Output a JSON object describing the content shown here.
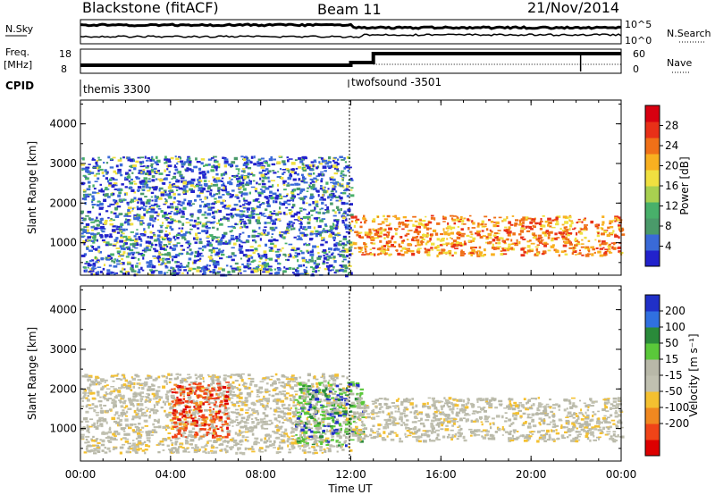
{
  "header": {
    "station": "Blackstone (fitACF)",
    "beam": "Beam 11",
    "date": "21/Nov/2014"
  },
  "strips": {
    "nsky_label": "N.Sky",
    "nsky_ticks": [
      "10^5",
      "10^0"
    ],
    "nsearch_label": "N.Search",
    "freq_label_line1": "Freq.",
    "freq_label_line2": "[MHz]",
    "freq_ticks": [
      "18",
      "8"
    ],
    "nave_label": "Nave",
    "nave_ticks": [
      "60",
      "0"
    ],
    "cpid_label": "CPID",
    "cpid_segments": [
      {
        "name": "themis 3300",
        "start_hour": 0
      },
      {
        "name": "twofsound -3501",
        "start_hour": 12
      }
    ]
  },
  "panels": {
    "power": {
      "ylabel": "Slant Range [km]",
      "cb_label": "Power [dB]"
    },
    "velocity": {
      "ylabel": "Slant Range [km]",
      "cb_label": "Velocity [m s⁻¹]"
    }
  },
  "xlabel": "Time UT",
  "colors": {
    "power_scale": [
      "#2222cc",
      "#3a6ad8",
      "#4a9a6a",
      "#48b06a",
      "#a8d050",
      "#f0e040",
      "#f8b020",
      "#f07018",
      "#e83018",
      "#d80010"
    ],
    "velocity_scale": [
      "#2030c8",
      "#3070e0",
      "#2a8a3a",
      "#5ac83a",
      "#b8b8a8",
      "#c0c0b0",
      "#f4c030",
      "#f08820",
      "#f04418",
      "#dd0000"
    ]
  },
  "chart_data": [
    {
      "type": "heatmap",
      "title": "Power",
      "x_axis": {
        "label": "Time UT",
        "range_hours": [
          0,
          24
        ],
        "ticks": [
          "00:00",
          "04:00",
          "08:00",
          "12:00",
          "16:00",
          "20:00",
          "00:00"
        ]
      },
      "y_axis": {
        "label": "Slant Range [km]",
        "range_km": [
          180,
          4600
        ],
        "ticks": [
          1000,
          2000,
          3000,
          4000
        ]
      },
      "colorbar": {
        "label": "Power [dB]",
        "ticks": [
          4,
          8,
          12,
          16,
          20,
          24,
          28
        ],
        "range": [
          0,
          32
        ]
      },
      "echo_regions": [
        {
          "t_start": 0.0,
          "t_end": 12.0,
          "range_start": 200,
          "range_end": 3200,
          "level": "mixed"
        },
        {
          "t_start": 12.0,
          "t_end": 24.0,
          "range_start": 700,
          "range_end": 1700,
          "level": "high"
        }
      ]
    },
    {
      "type": "heatmap",
      "title": "Velocity",
      "x_axis": {
        "label": "Time UT",
        "range_hours": [
          0,
          24
        ],
        "ticks": [
          "00:00",
          "04:00",
          "08:00",
          "12:00",
          "16:00",
          "20:00",
          "00:00"
        ]
      },
      "y_axis": {
        "label": "Slant Range [km]",
        "range_km": [
          180,
          4600
        ],
        "ticks": [
          1000,
          2000,
          3000,
          4000
        ]
      },
      "colorbar": {
        "label": "Velocity [m s⁻¹]",
        "ticks": [
          200,
          100,
          50,
          15,
          -15,
          -50,
          -100,
          -200
        ],
        "range": [
          -250,
          250
        ]
      },
      "echo_regions": [
        {
          "t_start": 0.0,
          "t_end": 12.0,
          "range_start": 400,
          "range_end": 2400,
          "level": "low"
        },
        {
          "t_start": 4.0,
          "t_end": 6.5,
          "range_start": 800,
          "range_end": 2200,
          "level": "negative"
        },
        {
          "t_start": 9.5,
          "t_end": 12.5,
          "range_start": 600,
          "range_end": 2200,
          "level": "positive"
        },
        {
          "t_start": 12.0,
          "t_end": 24.0,
          "range_start": 700,
          "range_end": 1800,
          "level": "low"
        }
      ]
    }
  ]
}
